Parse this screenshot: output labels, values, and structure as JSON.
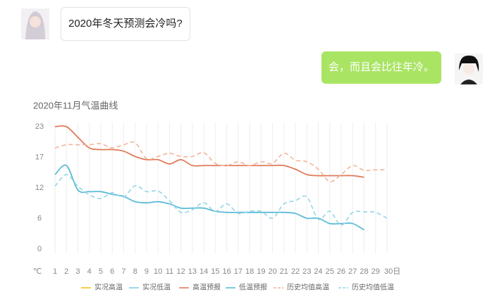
{
  "messages": [
    {
      "text": "2020年冬天预测会冷吗?"
    },
    {
      "text": "会，而且会比往年冷。"
    }
  ],
  "chart_data": {
    "type": "line",
    "title": "2020年11月气温曲线",
    "y_unit": "℃",
    "categories": [
      "1",
      "2",
      "3",
      "4",
      "5",
      "6",
      "7",
      "8",
      "9",
      "10",
      "11",
      "12",
      "13",
      "14",
      "15",
      "16",
      "17",
      "18",
      "19",
      "20",
      "21",
      "22",
      "23",
      "24",
      "25",
      "26",
      "27",
      "28",
      "29",
      "30日"
    ],
    "ylim": [
      0,
      23
    ],
    "yticks": [
      0,
      {
        "value": 5.75,
        "label": "6"
      },
      {
        "value": 11.5,
        "label": "12"
      },
      {
        "value": 17.25,
        "label": "17"
      },
      23
    ],
    "grid": true,
    "series": [
      {
        "name": "实况高温",
        "color": "#f5c518",
        "dashed": false,
        "values": [
          null,
          null,
          null,
          null,
          null,
          null,
          null,
          null,
          null,
          null,
          null,
          null,
          null,
          null,
          null,
          null,
          null,
          null,
          null,
          null,
          null,
          null,
          null,
          null,
          null,
          null,
          null,
          null,
          null,
          null
        ]
      },
      {
        "name": "实况低温",
        "color": "#7fd0e6",
        "dashed": false,
        "values": [
          null,
          null,
          null,
          null,
          null,
          null,
          null,
          null,
          null,
          null,
          null,
          null,
          null,
          null,
          null,
          null,
          null,
          null,
          null,
          null,
          null,
          null,
          null,
          null,
          null,
          null,
          null,
          null,
          null,
          null
        ]
      },
      {
        "name": "高温预报",
        "color": "#e07b5a",
        "dashed": false,
        "values": [
          23,
          23,
          21,
          19,
          18.7,
          18.7,
          18.4,
          17.4,
          16.8,
          16.8,
          16,
          16.8,
          15.7,
          15.7,
          15.7,
          15.7,
          15.7,
          15.7,
          15.7,
          15.7,
          15.7,
          15,
          14,
          13.8,
          13.8,
          13.8,
          13.8,
          13.5,
          null,
          null
        ]
      },
      {
        "name": "低温预报",
        "color": "#5bbcd6",
        "dashed": false,
        "values": [
          14,
          15.7,
          11.1,
          10.8,
          10.8,
          10.3,
          9.9,
          8.9,
          8.7,
          8.9,
          8.5,
          7.7,
          7.7,
          7.7,
          7.1,
          6.9,
          6.9,
          6.9,
          6.9,
          6.9,
          6.9,
          6.7,
          5.8,
          5.8,
          4.8,
          4.8,
          4.8,
          3.6,
          null,
          null
        ]
      },
      {
        "name": "历史均值高温",
        "color": "#f2b49a",
        "dashed": true,
        "values": [
          19,
          19.6,
          19.6,
          19.6,
          19.8,
          19,
          19.6,
          20,
          17,
          17.4,
          18,
          17.4,
          17.4,
          18.1,
          16.1,
          15.7,
          16.4,
          15.7,
          16.4,
          16.1,
          18,
          16.7,
          16.4,
          15,
          12.7,
          14,
          15.7,
          14.8,
          14.9,
          14.9
        ]
      },
      {
        "name": "历史均值低温",
        "color": "#94d6e6",
        "dashed": true,
        "values": [
          11.8,
          14,
          11.8,
          10.2,
          9.5,
          10.6,
          9.8,
          11.9,
          10.8,
          10.9,
          9.1,
          6.9,
          7.4,
          8.7,
          7.1,
          8.5,
          6.7,
          7.1,
          7.1,
          5.8,
          8.5,
          9.1,
          9.8,
          5.6,
          7.1,
          4.5,
          6.9,
          7,
          6.9,
          5.8
        ]
      }
    ]
  }
}
